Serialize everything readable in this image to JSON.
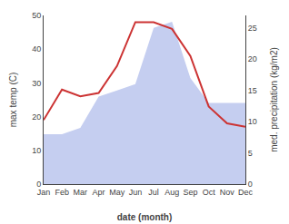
{
  "chart_data": {
    "type": "line",
    "xlabel": "date (month)",
    "ylabel": "max temp (C)",
    "y2label": "med. precipitation (kg/m2)",
    "categories": [
      "Jan",
      "Feb",
      "Mar",
      "Apr",
      "May",
      "Jun",
      "Jul",
      "Aug",
      "Sep",
      "Oct",
      "Nov",
      "Dec"
    ],
    "series": [
      {
        "name": "max temp (C)",
        "type": "line",
        "color": "#cc3333",
        "values": [
          19,
          28,
          26,
          27,
          35,
          48,
          48,
          46,
          38,
          23,
          18,
          17
        ]
      },
      {
        "name": "med. precipitation (kg/m2)",
        "type": "area",
        "axis": "y2",
        "color": "#c5cef0",
        "values": [
          8,
          8,
          9,
          14,
          15,
          16,
          25,
          26,
          17,
          13,
          13,
          13
        ]
      }
    ],
    "ylim": [
      0,
      50
    ],
    "yticks": [
      0,
      10,
      20,
      30,
      40,
      50
    ],
    "y2lim": [
      0,
      27
    ],
    "y2ticks": [
      0,
      5,
      10,
      15,
      20,
      25
    ],
    "grid": false
  }
}
